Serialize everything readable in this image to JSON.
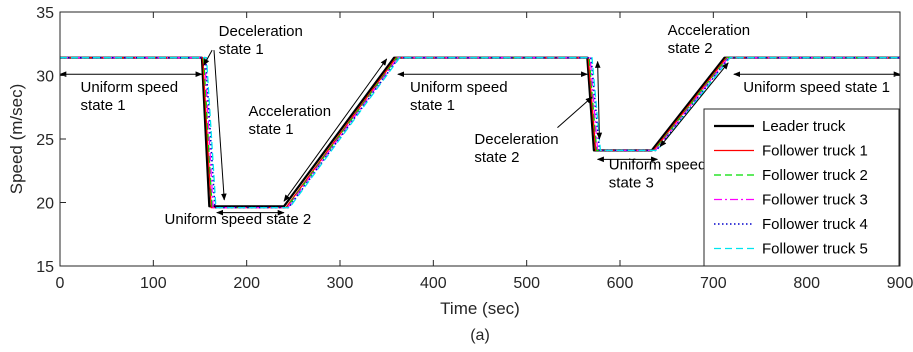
{
  "chart_data": {
    "type": "line",
    "xlabel": "Time (sec)",
    "ylabel": "Speed (m/sec)",
    "caption": "(a)",
    "xlim": [
      0,
      900
    ],
    "ylim": [
      15,
      35
    ],
    "xticks": [
      0,
      100,
      200,
      300,
      400,
      500,
      600,
      700,
      800,
      900
    ],
    "yticks": [
      15,
      20,
      25,
      30,
      35
    ],
    "grid": false,
    "legend_position": "lower-right",
    "series": [
      {
        "name": "Leader truck",
        "color": "#000000",
        "style": "solid",
        "width": 2.2,
        "x": [
          0,
          152,
          160,
          240,
          358,
          565,
          572,
          634,
          712,
          900
        ],
        "y": [
          31.4,
          31.4,
          19.7,
          19.7,
          31.4,
          31.4,
          24.1,
          24.1,
          31.4,
          31.4
        ]
      },
      {
        "name": "Follower truck 1",
        "color": "#ff0000",
        "style": "solid",
        "width": 1.3,
        "x": [
          0,
          153,
          162,
          242,
          360,
          566,
          574,
          636,
          714,
          900
        ],
        "y": [
          31.4,
          31.4,
          19.6,
          19.6,
          31.4,
          31.4,
          24.1,
          24.1,
          31.4,
          31.4
        ]
      },
      {
        "name": "Follower truck 2",
        "color": "#00dd00",
        "style": "dashed",
        "width": 1.3,
        "x": [
          0,
          154,
          163,
          243,
          361,
          567,
          575,
          637,
          715,
          900
        ],
        "y": [
          31.4,
          31.4,
          19.6,
          19.6,
          31.4,
          31.4,
          24.1,
          24.1,
          31.4,
          31.4
        ]
      },
      {
        "name": "Follower truck 3",
        "color": "#ff00ff",
        "style": "dashdot",
        "width": 1.3,
        "x": [
          0,
          155,
          164,
          244,
          362,
          568,
          576,
          638,
          716,
          900
        ],
        "y": [
          31.4,
          31.4,
          19.6,
          19.6,
          31.4,
          31.4,
          24.1,
          24.1,
          31.4,
          31.4
        ]
      },
      {
        "name": "Follower truck 4",
        "color": "#0000cc",
        "style": "dotted",
        "width": 1.6,
        "x": [
          0,
          156,
          166,
          245,
          363,
          569,
          578,
          639,
          717,
          900
        ],
        "y": [
          31.4,
          31.4,
          19.6,
          19.6,
          31.4,
          31.4,
          24.1,
          24.1,
          31.4,
          31.4
        ]
      },
      {
        "name": "Follower truck 5",
        "color": "#00e5ee",
        "style": "dashed",
        "width": 1.3,
        "x": [
          0,
          157,
          167,
          246,
          364,
          570,
          579,
          640,
          718,
          900
        ],
        "y": [
          31.4,
          31.4,
          19.6,
          19.6,
          31.4,
          31.4,
          24.1,
          24.1,
          31.4,
          31.4
        ]
      }
    ],
    "annotations": [
      {
        "text": [
          "Uniform speed",
          "state 1"
        ],
        "x": 22,
        "y": 28.7
      },
      {
        "text": [
          "Deceleration",
          "state 1"
        ],
        "x": 170,
        "y": 33.1
      },
      {
        "text": [
          "Acceleration",
          "state 1"
        ],
        "x": 202,
        "y": 26.8
      },
      {
        "text": [
          "Uniform speed state 2"
        ],
        "x": 112,
        "y": 18.3
      },
      {
        "text": [
          "Uniform speed",
          "state 1"
        ],
        "x": 375,
        "y": 28.7
      },
      {
        "text": [
          "Deceleration",
          "state 2"
        ],
        "x": 444,
        "y": 24.6
      },
      {
        "text": [
          "Uniform speed",
          "state 3"
        ],
        "x": 588,
        "y": 22.6
      },
      {
        "text": [
          "Acceleration",
          "state 2"
        ],
        "x": 651,
        "y": 33.2
      },
      {
        "text": [
          "Uniform speed state 1"
        ],
        "x": 732,
        "y": 28.7
      }
    ],
    "arrows": [
      {
        "x1": 0,
        "y1": 30.1,
        "x2": 152,
        "y2": 30.1,
        "double": true
      },
      {
        "x1": 163,
        "y1": 32.0,
        "x2": 154,
        "y2": 30.8,
        "double": false
      },
      {
        "x1": 165,
        "y1": 32.0,
        "x2": 176,
        "y2": 20.2,
        "double": false
      },
      {
        "x1": 240,
        "y1": 20.1,
        "x2": 350,
        "y2": 31.3,
        "double": true
      },
      {
        "x1": 168,
        "y1": 19.2,
        "x2": 240,
        "y2": 19.2,
        "double": true
      },
      {
        "x1": 362,
        "y1": 30.1,
        "x2": 565,
        "y2": 30.1,
        "double": true
      },
      {
        "x1": 533,
        "y1": 25.9,
        "x2": 570,
        "y2": 28.3,
        "double": false
      },
      {
        "x1": 578,
        "y1": 25.0,
        "x2": 576,
        "y2": 31.1,
        "double": true
      },
      {
        "x1": 576,
        "y1": 23.4,
        "x2": 640,
        "y2": 23.4,
        "double": true
      },
      {
        "x1": 643,
        "y1": 24.4,
        "x2": 716,
        "y2": 31.0,
        "double": true
      },
      {
        "x1": 722,
        "y1": 30.1,
        "x2": 900,
        "y2": 30.1,
        "double": true
      }
    ]
  }
}
